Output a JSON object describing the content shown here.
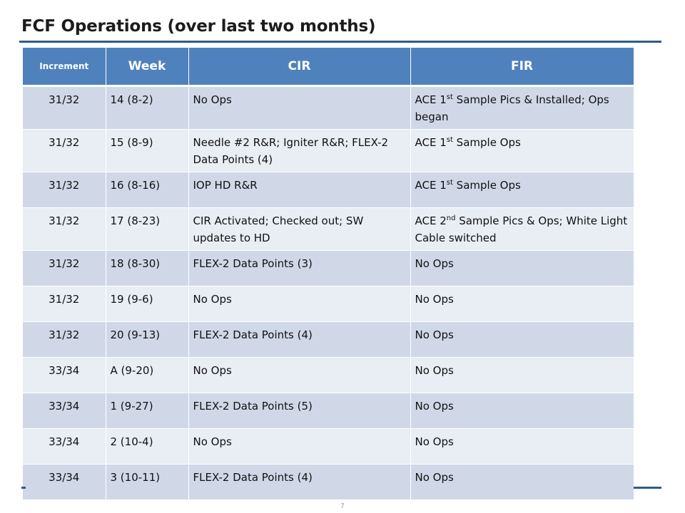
{
  "slide": {
    "title": "FCF Operations (over last two months)",
    "page_number": "7"
  },
  "table": {
    "headers": [
      "Increment",
      "Week",
      "CIR",
      "FIR"
    ],
    "rows": [
      {
        "increment": "31/32",
        "week": "14 (8-2)",
        "cir": "No Ops",
        "fir_pre": "ACE 1",
        "fir_sup": "st",
        "fir_post": " Sample Pics & Installed; Ops began"
      },
      {
        "increment": "31/32",
        "week": "15 (8-9)",
        "cir": "Needle #2 R&R; Igniter R&R; FLEX-2 Data Points (4)",
        "fir_pre": "ACE 1",
        "fir_sup": "st",
        "fir_post": " Sample Ops"
      },
      {
        "increment": "31/32",
        "week": "16 (8-16)",
        "cir": "IOP HD R&R",
        "fir_pre": "ACE 1",
        "fir_sup": "st",
        "fir_post": " Sample Ops"
      },
      {
        "increment": "31/32",
        "week": "17 (8-23)",
        "cir": "CIR Activated; Checked out;  SW updates to HD",
        "fir_pre": "ACE 2",
        "fir_sup": "nd",
        "fir_post": " Sample Pics & Ops; White Light Cable switched"
      },
      {
        "increment": "31/32",
        "week": "18 (8-30)",
        "cir": "FLEX-2 Data Points (3)",
        "fir": "No Ops"
      },
      {
        "increment": "31/32",
        "week": "19 (9-6)",
        "cir": "No Ops",
        "fir": "No Ops"
      },
      {
        "increment": "31/32",
        "week": "20 (9-13)",
        "cir": "FLEX-2 Data Points (4)",
        "fir": "No Ops"
      },
      {
        "increment": "33/34",
        "week": "A (9-20)",
        "cir": "No Ops",
        "fir": "No Ops"
      },
      {
        "increment": "33/34",
        "week": "1 (9-27)",
        "cir": "FLEX-2 Data Points (5)",
        "fir": "No Ops"
      },
      {
        "increment": "33/34",
        "week": "2 (10-4)",
        "cir": "No Ops",
        "fir": "No Ops"
      },
      {
        "increment": "33/34",
        "week": "3 (10-11)",
        "cir": "FLEX-2 Data Points (4)",
        "fir": "No Ops"
      }
    ]
  },
  "colors": {
    "header_bg": "#4f81bd",
    "row_odd_bg": "#d0d8e8",
    "row_even_bg": "#e9edf4",
    "rule": "#2e5d8a"
  }
}
